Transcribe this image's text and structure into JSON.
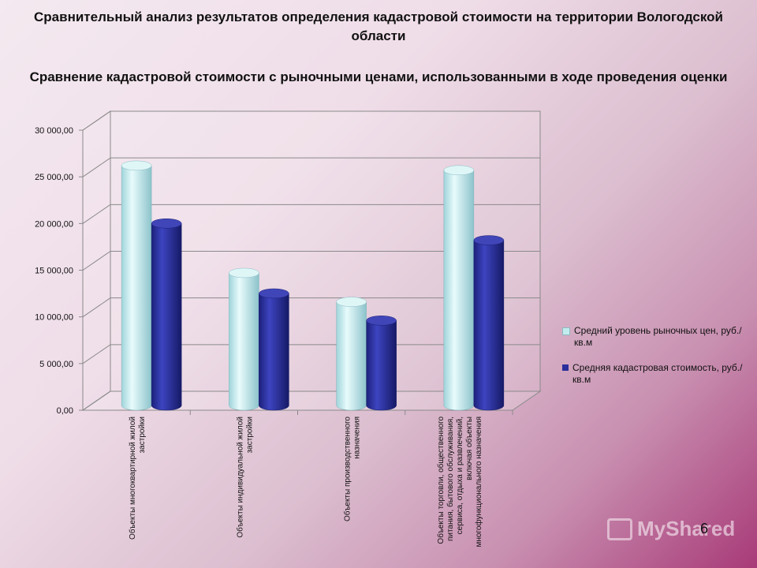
{
  "title": "Сравнительный анализ результатов определения кадастровой стоимости на территории Вологодской области",
  "subtitle": "Сравнение кадастровой стоимости с рыночными ценами, использованными в ходе проведения оценки",
  "page_number": "6",
  "watermark": "MyShared",
  "colors": {
    "series1": "#c3ecef",
    "series2": "#2a2f9a"
  },
  "chart_data": {
    "type": "bar",
    "categories": [
      [
        "Объекты многоквартирной жилой",
        "застройки"
      ],
      [
        "Объекты индивидуальной жилой",
        "застройки"
      ],
      [
        "Объекты производственного",
        "назначения"
      ],
      [
        "Объекты торговли, общественного",
        "питания, бытового обслуживания,",
        "сервиса, отдыха и развлечений,",
        "включая объекты",
        "многофункционального назначения"
      ]
    ],
    "series": [
      {
        "name": "Средний уровень рыночных цен, руб./кв.м",
        "values": [
          25700,
          14200,
          11100,
          25200
        ]
      },
      {
        "name": "Средняя кадастровая стоимость, руб./кв.м",
        "values": [
          19500,
          12000,
          9100,
          17700
        ]
      }
    ],
    "yticks": [
      "0,00",
      "5 000,00",
      "10 000,00",
      "15 000,00",
      "20 000,00",
      "25 000,00",
      "30 000,00"
    ],
    "ylim": [
      0,
      30000
    ],
    "grid": true,
    "legend": "right"
  }
}
